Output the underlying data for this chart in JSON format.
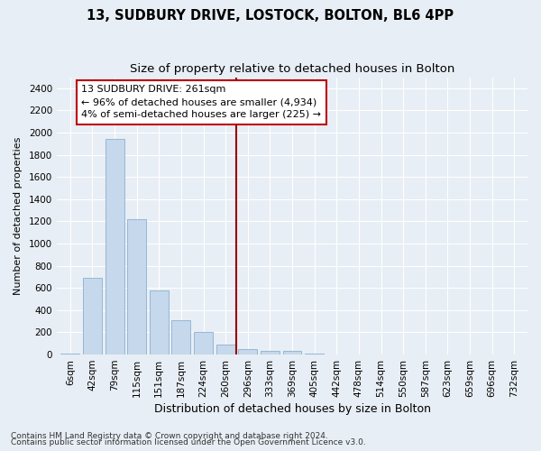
{
  "title1": "13, SUDBURY DRIVE, LOSTOCK, BOLTON, BL6 4PP",
  "title2": "Size of property relative to detached houses in Bolton",
  "xlabel": "Distribution of detached houses by size in Bolton",
  "ylabel": "Number of detached properties",
  "categories": [
    "6sqm",
    "42sqm",
    "79sqm",
    "115sqm",
    "151sqm",
    "187sqm",
    "224sqm",
    "260sqm",
    "296sqm",
    "333sqm",
    "369sqm",
    "405sqm",
    "442sqm",
    "478sqm",
    "514sqm",
    "550sqm",
    "587sqm",
    "623sqm",
    "659sqm",
    "696sqm",
    "732sqm"
  ],
  "values": [
    12,
    695,
    1940,
    1220,
    580,
    310,
    205,
    90,
    50,
    35,
    30,
    5,
    0,
    0,
    0,
    0,
    0,
    0,
    0,
    0,
    0
  ],
  "bar_color": "#c5d8ec",
  "bar_edge_color": "#8ab0d0",
  "vline_x_index": 7,
  "vline_color": "#990000",
  "annotation_text": "13 SUDBURY DRIVE: 261sqm\n← 96% of detached houses are smaller (4,934)\n4% of semi-detached houses are larger (225) →",
  "annotation_box_facecolor": "#ffffff",
  "annotation_box_edgecolor": "#bb0000",
  "bg_color": "#e8eef5",
  "grid_color": "#ffffff",
  "footer1": "Contains HM Land Registry data © Crown copyright and database right 2024.",
  "footer2": "Contains public sector information licensed under the Open Government Licence v3.0.",
  "ylim": [
    0,
    2500
  ],
  "yticks": [
    0,
    200,
    400,
    600,
    800,
    1000,
    1200,
    1400,
    1600,
    1800,
    2000,
    2200,
    2400
  ],
  "title1_fontsize": 10.5,
  "title2_fontsize": 9.5,
  "xlabel_fontsize": 9,
  "ylabel_fontsize": 8,
  "tick_fontsize": 7.5,
  "annotation_fontsize": 8,
  "footer_fontsize": 6.5
}
